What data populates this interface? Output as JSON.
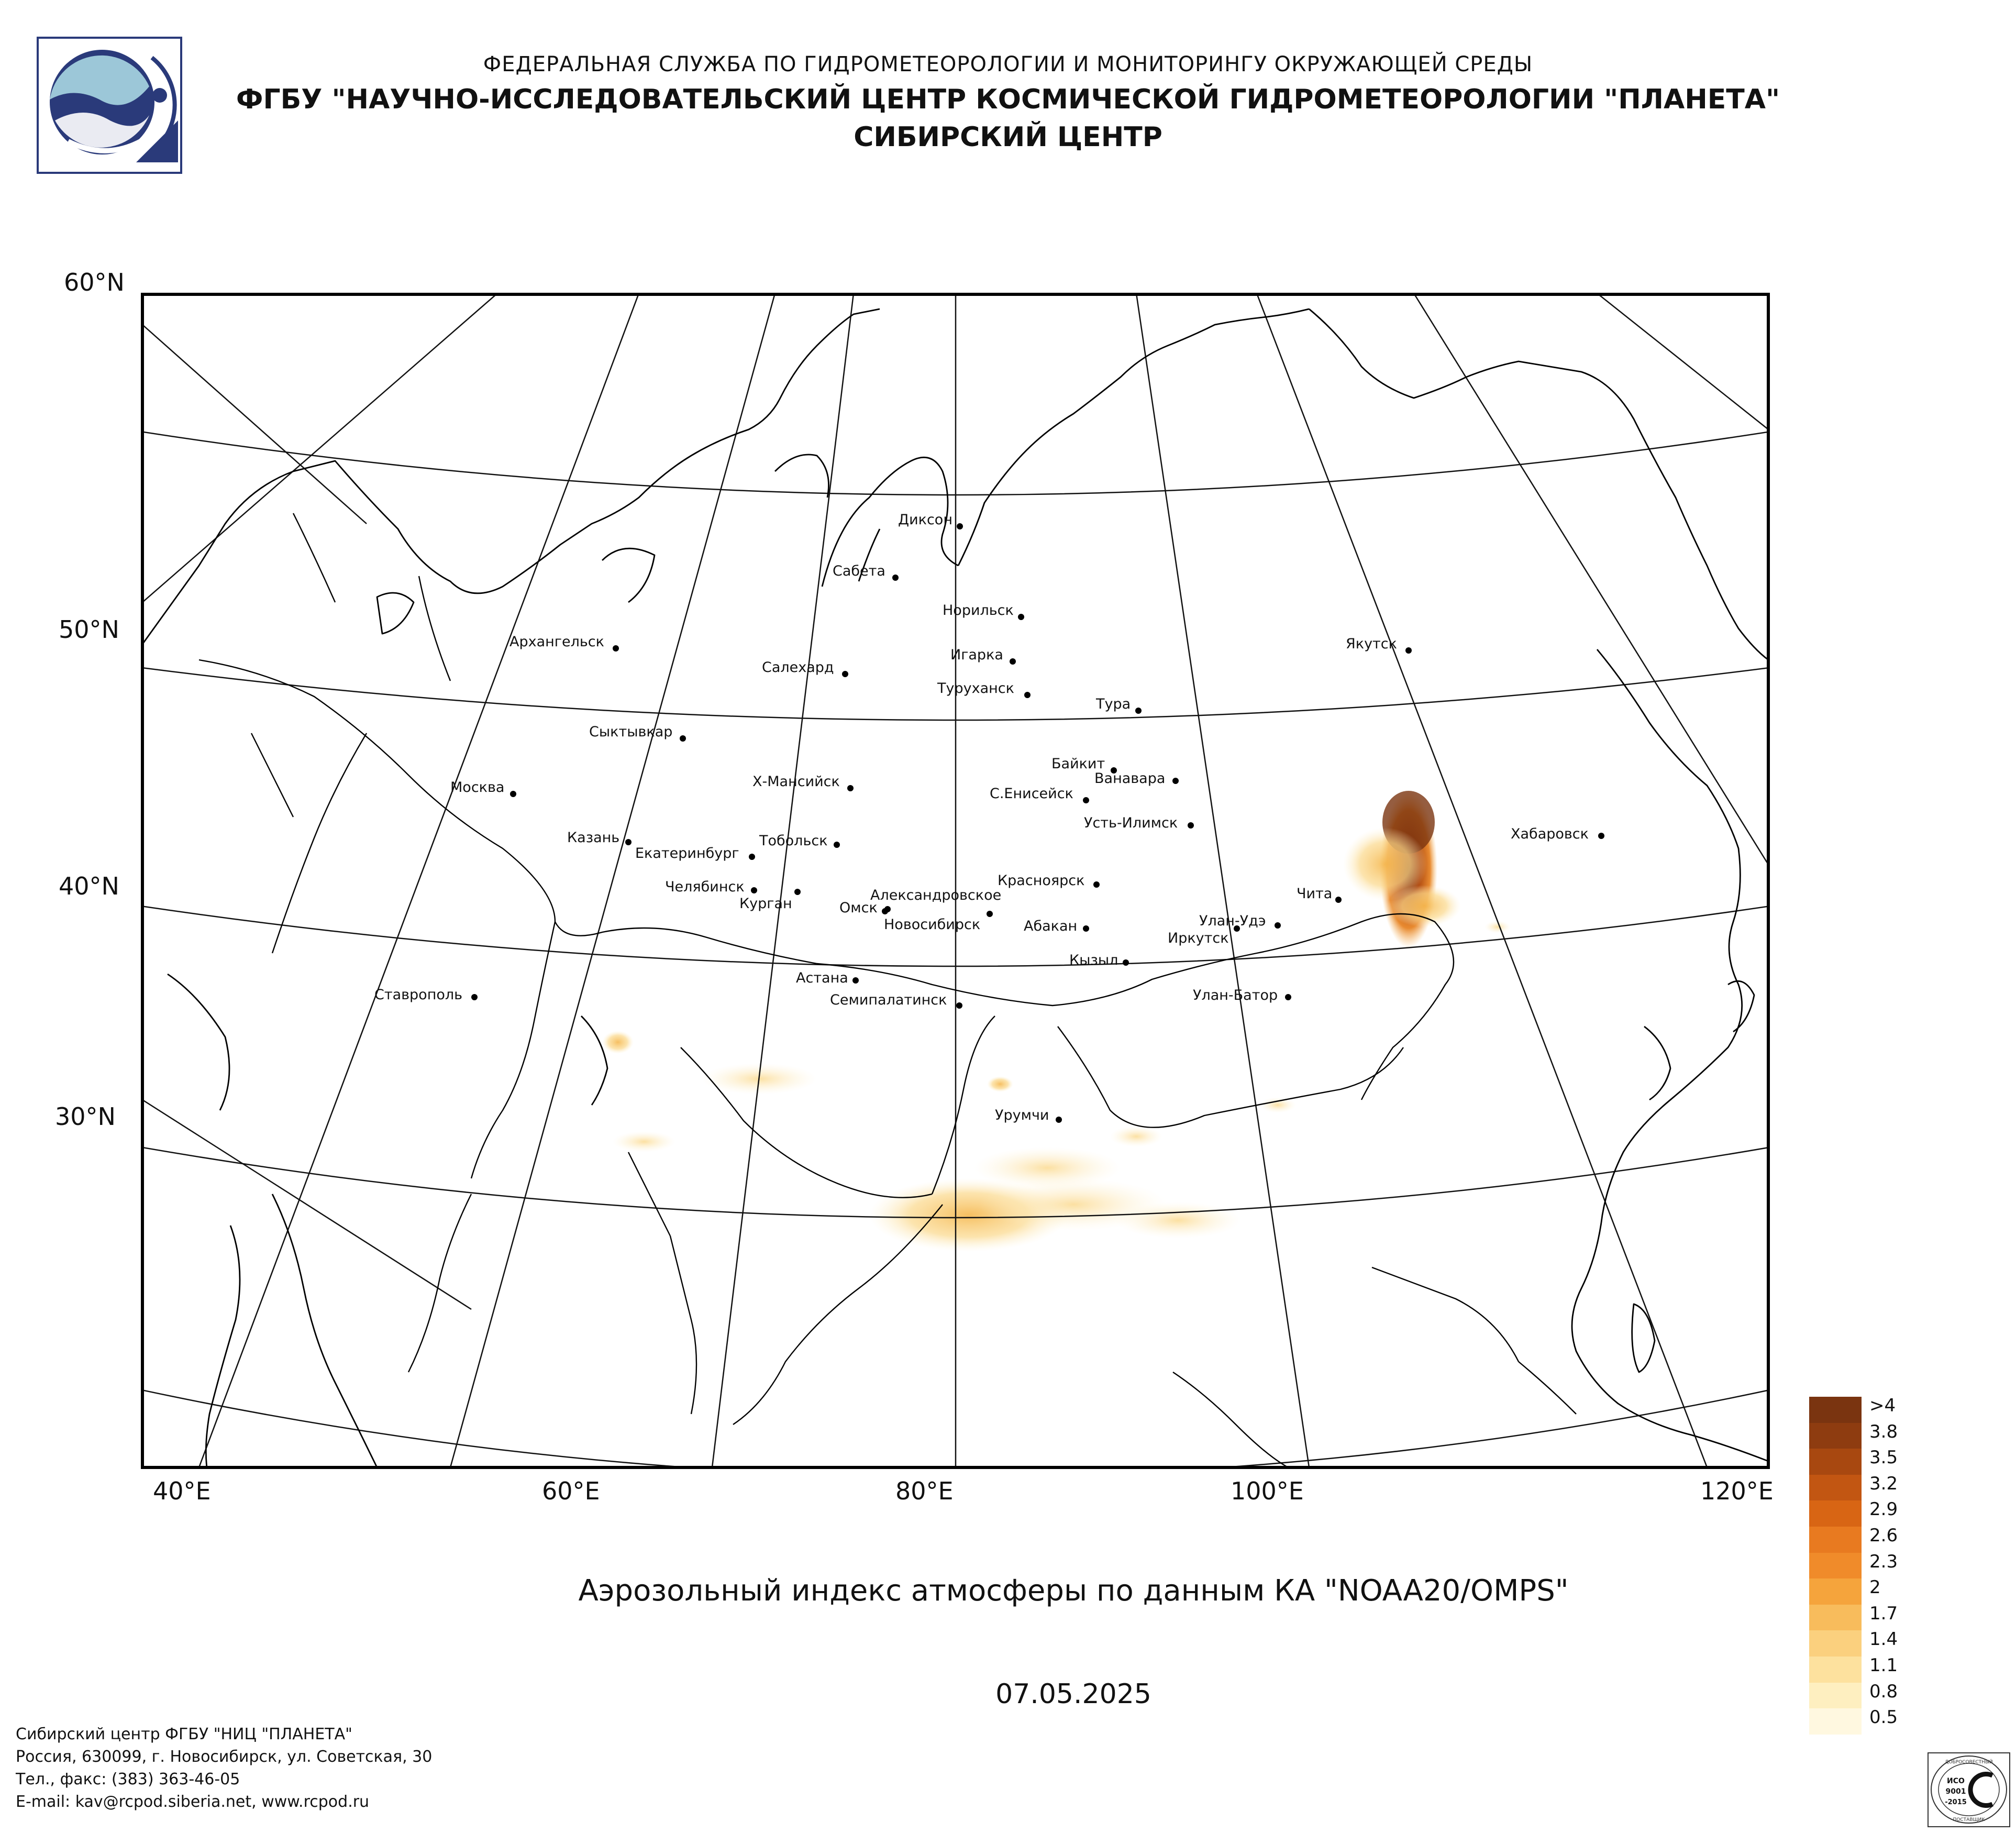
{
  "header": {
    "line1": "ФЕДЕРАЛЬНАЯ СЛУЖБА ПО ГИДРОМЕТЕОРОЛОГИИ И МОНИТОРИНГУ ОКРУЖАЮЩЕЙ СРЕДЫ",
    "line2": "ФГБУ \"НАУЧНО-ИССЛЕДОВАТЕЛЬСКИЙ ЦЕНТР КОСМИЧЕСКОЙ ГИДРОМЕТЕОРОЛОГИИ \"ПЛАНЕТА\"",
    "line3": "СИБИРСКИЙ ЦЕНТР"
  },
  "map": {
    "lat_labels": [
      "60°N",
      "50°N",
      "40°N",
      "30°N"
    ],
    "lon_labels": [
      "40°E",
      "60°E",
      "80°E",
      "100°E",
      "120°E"
    ],
    "cities": [
      "Диксон",
      "Сабета",
      "Норильск",
      "Игарка",
      "Салехард",
      "Туруханск",
      "Тура",
      "Якутск",
      "Архангельск",
      "Сыктывкар",
      "Байкит",
      "Ванавара",
      "Москва",
      "Х-Мансийск",
      "С.Енисейск",
      "Усть-Илимск",
      "Хабаровск",
      "Казань",
      "Тобольск",
      "Екатеринбург",
      "Челябинск",
      "Курган",
      "Александровское",
      "Красноярск",
      "Чита",
      "Омск",
      "Новосибирск",
      "Абакан",
      "Улан-Удэ",
      "Иркутск",
      "Астана",
      "Кызыл",
      "Ставрополь",
      "Семипалатинск",
      "Улан-Батор",
      "Урумчи"
    ],
    "colors": {
      "land_outline": "#000000",
      "plume_max": "#8a3a0c",
      "plume_low": "#fbe6a8"
    }
  },
  "subtitle": "Аэрозольный индекс атмосферы по данным КА \"NOAA20/OMPS\"",
  "date": "07.05.2025",
  "legend": {
    "labels": [
      ">4",
      "3.8",
      "3.5",
      "3.2",
      "2.9",
      "2.6",
      "2.3",
      "2",
      "1.7",
      "1.4",
      "1.1",
      "0.8",
      "0.5"
    ],
    "colors": [
      "#7a3410",
      "#8e3c10",
      "#a84810",
      "#c25612",
      "#d86514",
      "#e87a20",
      "#f08b2a",
      "#f5a43c",
      "#f8bc5c",
      "#fbd07e",
      "#fde19e",
      "#feefc0",
      "#fff8e0"
    ]
  },
  "footer": {
    "line1": "Сибирский центр ФГБУ \"НИЦ \"ПЛАНЕТА\"",
    "line2": "Россия, 630099, г. Новосибирск, ул. Советская, 30",
    "line3": "Тел., факс: (383) 363-46-05",
    "line4": "E-mail: kav@rcpod.siberia.net, www.rcpod.ru"
  },
  "cert": {
    "line1": "ИСО",
    "line2": "9001",
    "line3": "-2015",
    "arc_top": "ДОБРОСОВЕСТНЫЙ",
    "arc_bottom": "ПОСТАВЩИК"
  }
}
